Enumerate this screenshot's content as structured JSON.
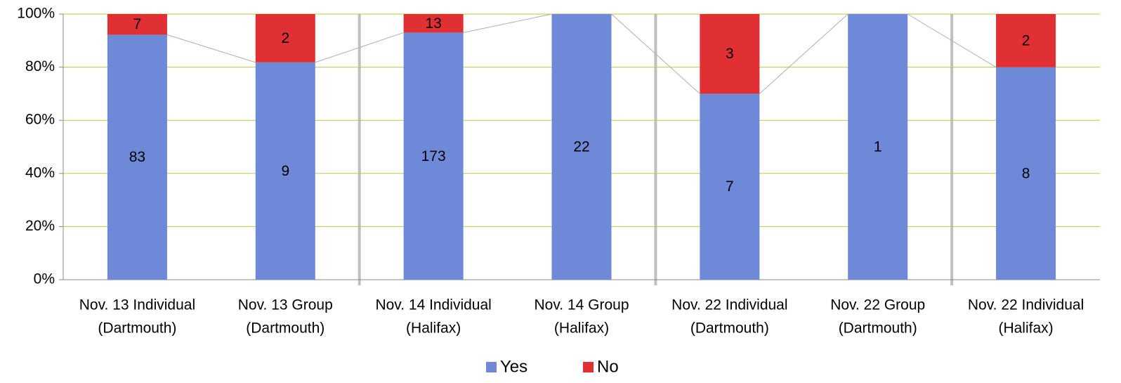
{
  "chart_data": {
    "type": "bar",
    "stacking": "percent",
    "categories": [
      [
        "Nov. 13 Individual",
        "(Dartmouth)"
      ],
      [
        "Nov. 13 Group",
        "(Dartmouth)"
      ],
      [
        "Nov. 14 Individual",
        "(Halifax)"
      ],
      [
        "Nov. 14 Group",
        "(Halifax)"
      ],
      [
        "Nov. 22 Individual",
        "(Dartmouth)"
      ],
      [
        "Nov. 22 Group",
        "(Dartmouth)"
      ],
      [
        "Nov. 22 Individual",
        "(Halifax)"
      ]
    ],
    "series": [
      {
        "name": "Yes",
        "color": "#6f89d9",
        "values": [
          83,
          9,
          173,
          22,
          7,
          1,
          8
        ]
      },
      {
        "name": "No",
        "color": "#e03033",
        "values": [
          7,
          2,
          13,
          0,
          3,
          0,
          2
        ]
      }
    ],
    "ylim": [
      0,
      100
    ],
    "yticks": [
      {
        "value": 0,
        "label": "0%"
      },
      {
        "value": 20,
        "label": "20%"
      },
      {
        "value": 40,
        "label": "40%"
      },
      {
        "value": 60,
        "label": "60%"
      },
      {
        "value": 80,
        "label": "80%"
      },
      {
        "value": 100,
        "label": "100%"
      }
    ],
    "grid": true,
    "grid_color": "#b3cf3b",
    "legend": "bottom",
    "series_lines": true
  }
}
